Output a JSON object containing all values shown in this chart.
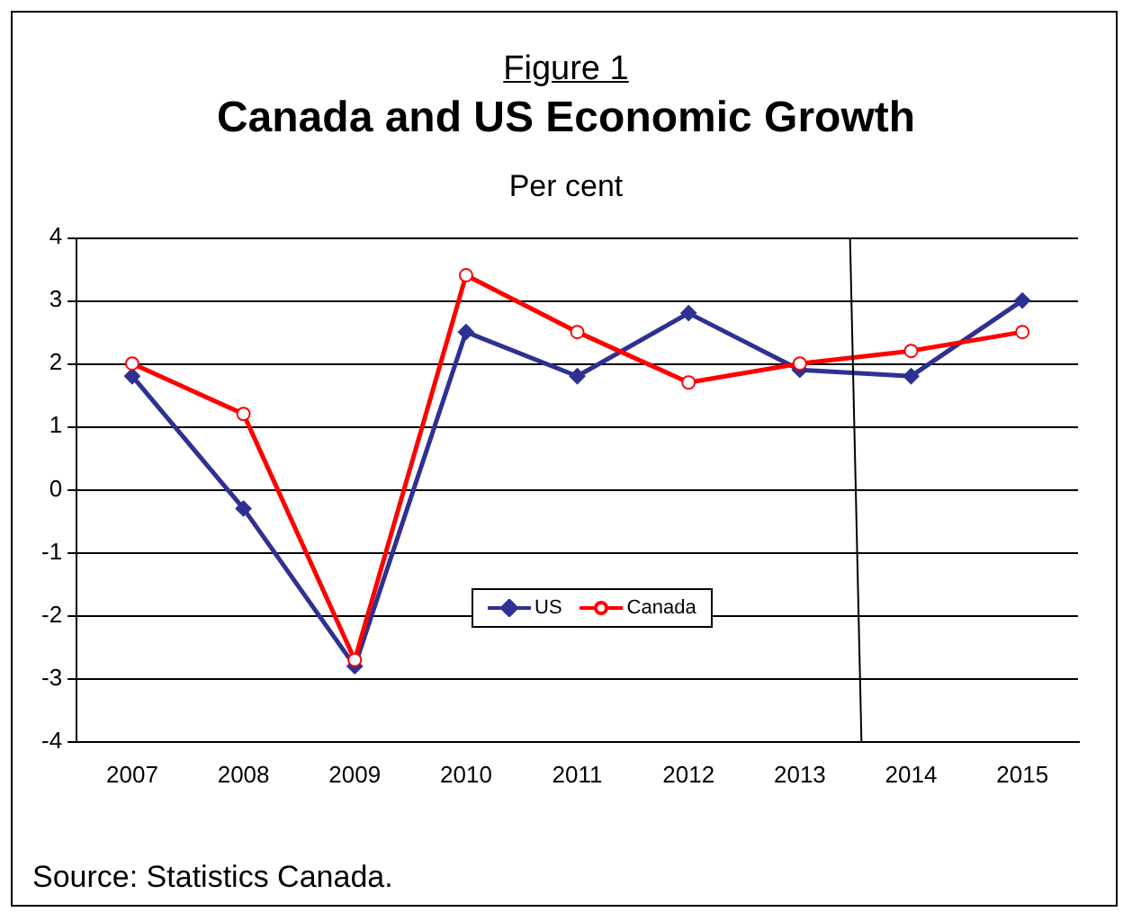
{
  "chart_data": {
    "type": "line",
    "title": "Canada and US Economic Growth",
    "subtitle": "Per cent",
    "annotations": [
      "Figure 1",
      "Source: Statistics Canada."
    ],
    "categories": [
      "2007",
      "2008",
      "2009",
      "2010",
      "2011",
      "2012",
      "2013",
      "2014",
      "2015"
    ],
    "ylim": [
      -4,
      4
    ],
    "yticks": [
      -4,
      -3,
      -2,
      -1,
      0,
      1,
      2,
      3,
      4
    ],
    "series": [
      {
        "name": "US",
        "color": "#2e3192",
        "marker": "diamond",
        "values": [
          1.8,
          -0.3,
          -2.8,
          2.5,
          1.8,
          2.8,
          1.9,
          1.8,
          3.0
        ]
      },
      {
        "name": "Canada",
        "color": "#ff0000",
        "marker": "circle",
        "values": [
          2.0,
          1.2,
          -2.7,
          3.4,
          2.5,
          1.7,
          2.0,
          2.2,
          2.5
        ]
      }
    ],
    "grid": "y",
    "legend": "bottom",
    "line_style": "solid"
  }
}
